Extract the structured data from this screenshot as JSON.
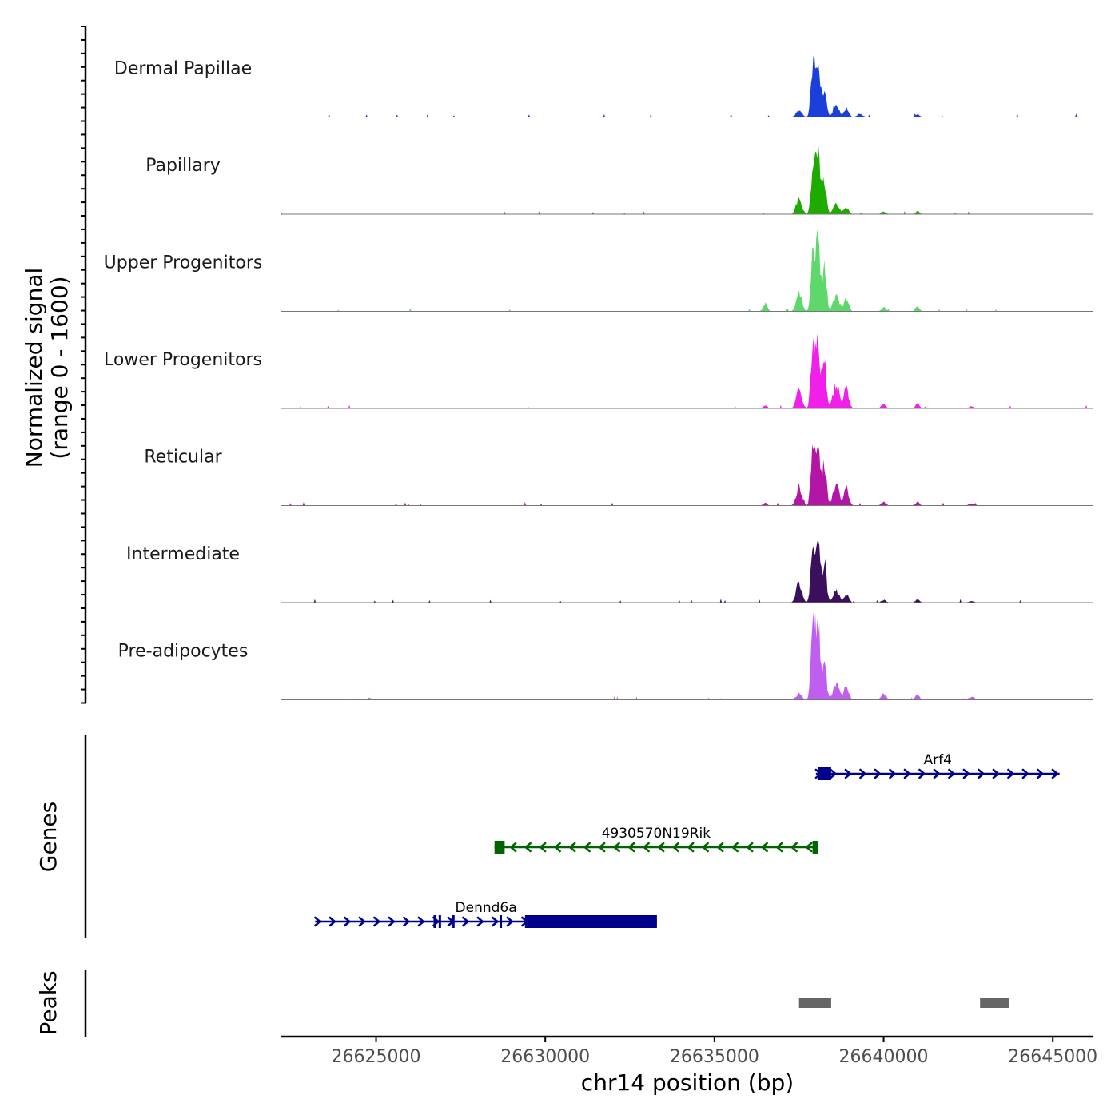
{
  "chart_data": {
    "type": "area",
    "title": "",
    "xlabel": "chr14 position (bp)",
    "ylabel_line1": "Normalized signal",
    "ylabel_line2": "(range 0 - 1600)",
    "x_ticks": [
      26625000,
      26630000,
      26635000,
      26640000,
      26645000
    ],
    "x_tick_labels": [
      "26625000",
      "26630000",
      "26635000",
      "26640000",
      "26645000"
    ],
    "xlim": [
      26622200,
      26646200
    ],
    "ylim": [
      0,
      1600
    ],
    "series": [
      {
        "name": "Dermal Papillae",
        "color": "#1a3fdb",
        "peaks": [
          [
            26637500,
            150,
            80
          ],
          [
            26637900,
            900,
            55
          ],
          [
            26638050,
            1200,
            70
          ],
          [
            26638250,
            560,
            60
          ],
          [
            26638600,
            220,
            90
          ],
          [
            26638900,
            160,
            70
          ],
          [
            26639300,
            60,
            80
          ],
          [
            26641000,
            50,
            60
          ]
        ]
      },
      {
        "name": "Papillary",
        "color": "#1faa00",
        "peaks": [
          [
            26637500,
            310,
            80
          ],
          [
            26637900,
            760,
            55
          ],
          [
            26638050,
            1200,
            70
          ],
          [
            26638250,
            650,
            60
          ],
          [
            26638600,
            190,
            90
          ],
          [
            26638900,
            140,
            70
          ],
          [
            26640000,
            50,
            70
          ],
          [
            26641000,
            55,
            60
          ]
        ]
      },
      {
        "name": "Upper Progenitors",
        "color": "#5ed86b",
        "peaks": [
          [
            26636500,
            160,
            60
          ],
          [
            26637500,
            380,
            80
          ],
          [
            26637900,
            1020,
            55
          ],
          [
            26638050,
            1400,
            70
          ],
          [
            26638250,
            830,
            60
          ],
          [
            26638600,
            300,
            90
          ],
          [
            26638900,
            230,
            70
          ],
          [
            26640000,
            80,
            70
          ],
          [
            26641000,
            90,
            60
          ]
        ]
      },
      {
        "name": "Lower Progenitors",
        "color": "#f020e8",
        "peaks": [
          [
            26636500,
            60,
            60
          ],
          [
            26637500,
            400,
            80
          ],
          [
            26637900,
            1150,
            55
          ],
          [
            26638050,
            1200,
            70
          ],
          [
            26638250,
            900,
            60
          ],
          [
            26638600,
            480,
            90
          ],
          [
            26638900,
            390,
            70
          ],
          [
            26640000,
            80,
            70
          ],
          [
            26641000,
            100,
            60
          ],
          [
            26642600,
            40,
            80
          ]
        ]
      },
      {
        "name": "Reticular",
        "color": "#b316a6",
        "peaks": [
          [
            26636500,
            50,
            60
          ],
          [
            26637500,
            360,
            80
          ],
          [
            26637900,
            1050,
            55
          ],
          [
            26638050,
            1100,
            70
          ],
          [
            26638250,
            830,
            60
          ],
          [
            26638600,
            400,
            90
          ],
          [
            26638900,
            360,
            70
          ],
          [
            26640000,
            70,
            70
          ],
          [
            26641000,
            70,
            60
          ],
          [
            26642600,
            40,
            80
          ]
        ]
      },
      {
        "name": "Intermediate",
        "color": "#3a0f5c",
        "peaks": [
          [
            26637500,
            390,
            80
          ],
          [
            26637900,
            1100,
            55
          ],
          [
            26638050,
            1200,
            70
          ],
          [
            26638250,
            820,
            60
          ],
          [
            26638600,
            220,
            90
          ],
          [
            26638900,
            160,
            70
          ],
          [
            26640000,
            50,
            70
          ],
          [
            26641000,
            60,
            60
          ],
          [
            26642600,
            30,
            80
          ]
        ]
      },
      {
        "name": "Pre-adipocytes",
        "color": "#c05ef0",
        "peaks": [
          [
            26637500,
            130,
            80
          ],
          [
            26637900,
            1280,
            55
          ],
          [
            26638050,
            1600,
            70
          ],
          [
            26638250,
            700,
            60
          ],
          [
            26638600,
            300,
            90
          ],
          [
            26638900,
            270,
            70
          ],
          [
            26640000,
            120,
            70
          ],
          [
            26641000,
            100,
            60
          ],
          [
            26642600,
            60,
            80
          ],
          [
            26624800,
            40,
            80
          ]
        ]
      }
    ],
    "genes": [
      {
        "name": "Arf4",
        "strand": "+",
        "row": 0,
        "color": "#00008b",
        "start": 26638000,
        "end": 26645200,
        "exons": [
          [
            26638050,
            26638450
          ]
        ]
      },
      {
        "name": "4930570N19Rik",
        "strand": "-",
        "row": 1,
        "color": "#006400",
        "start": 26628500,
        "end": 26638050,
        "exons": [
          [
            26628500,
            26628800
          ],
          [
            26637900,
            26638050
          ]
        ]
      },
      {
        "name": "Dennd6a",
        "strand": "+",
        "row": 2,
        "color": "#00008b",
        "start": 26623200,
        "end": 26633300,
        "exons": [
          [
            26626700,
            26626750
          ],
          [
            26626850,
            26626900
          ],
          [
            26627250,
            26627300
          ],
          [
            26628650,
            26628700
          ],
          [
            26629400,
            26633300
          ]
        ]
      }
    ],
    "peaks_track": [
      [
        26637500,
        26638450
      ],
      [
        26642850,
        26643700
      ]
    ],
    "gene_track_label": "Genes",
    "peaks_track_label": "Peaks"
  },
  "colors": {
    "axis": "#000000",
    "baseline": "#777777",
    "peak_region": "#666666",
    "tick_text": "#4d4d4d",
    "text": "#1a1a1a"
  }
}
